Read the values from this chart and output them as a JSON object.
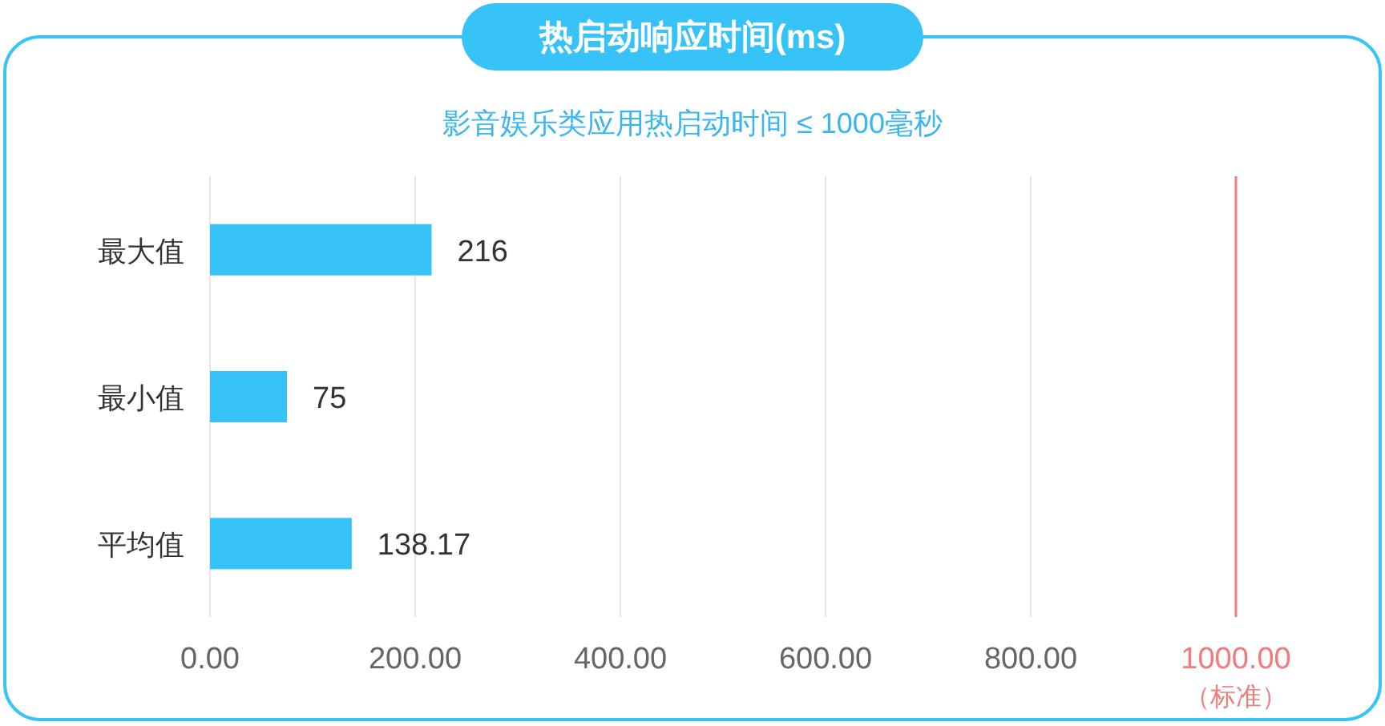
{
  "chart_data": {
    "type": "bar",
    "orientation": "horizontal",
    "title": "热启动响应时间(ms)",
    "subtitle": "影音娱乐类应用热启动时间 ≤ 1000毫秒",
    "categories": [
      "最大值",
      "最小值",
      "平均值"
    ],
    "values": [
      216,
      75,
      138.17
    ],
    "color": "#38c3f8",
    "data_labels": true,
    "xlim": [
      0,
      1000
    ],
    "xticks": [
      {
        "value": 0,
        "label": "0.00"
      },
      {
        "value": 200,
        "label": "200.00"
      },
      {
        "value": 400,
        "label": "400.00"
      },
      {
        "value": 600,
        "label": "600.00"
      },
      {
        "value": 800,
        "label": "800.00"
      },
      {
        "value": 1000,
        "label": "1000.00"
      }
    ],
    "ref_lines": [
      {
        "axis": "x",
        "value": 1000,
        "label": "（标准）",
        "color": "#f07c7c"
      }
    ],
    "grid": "x"
  }
}
